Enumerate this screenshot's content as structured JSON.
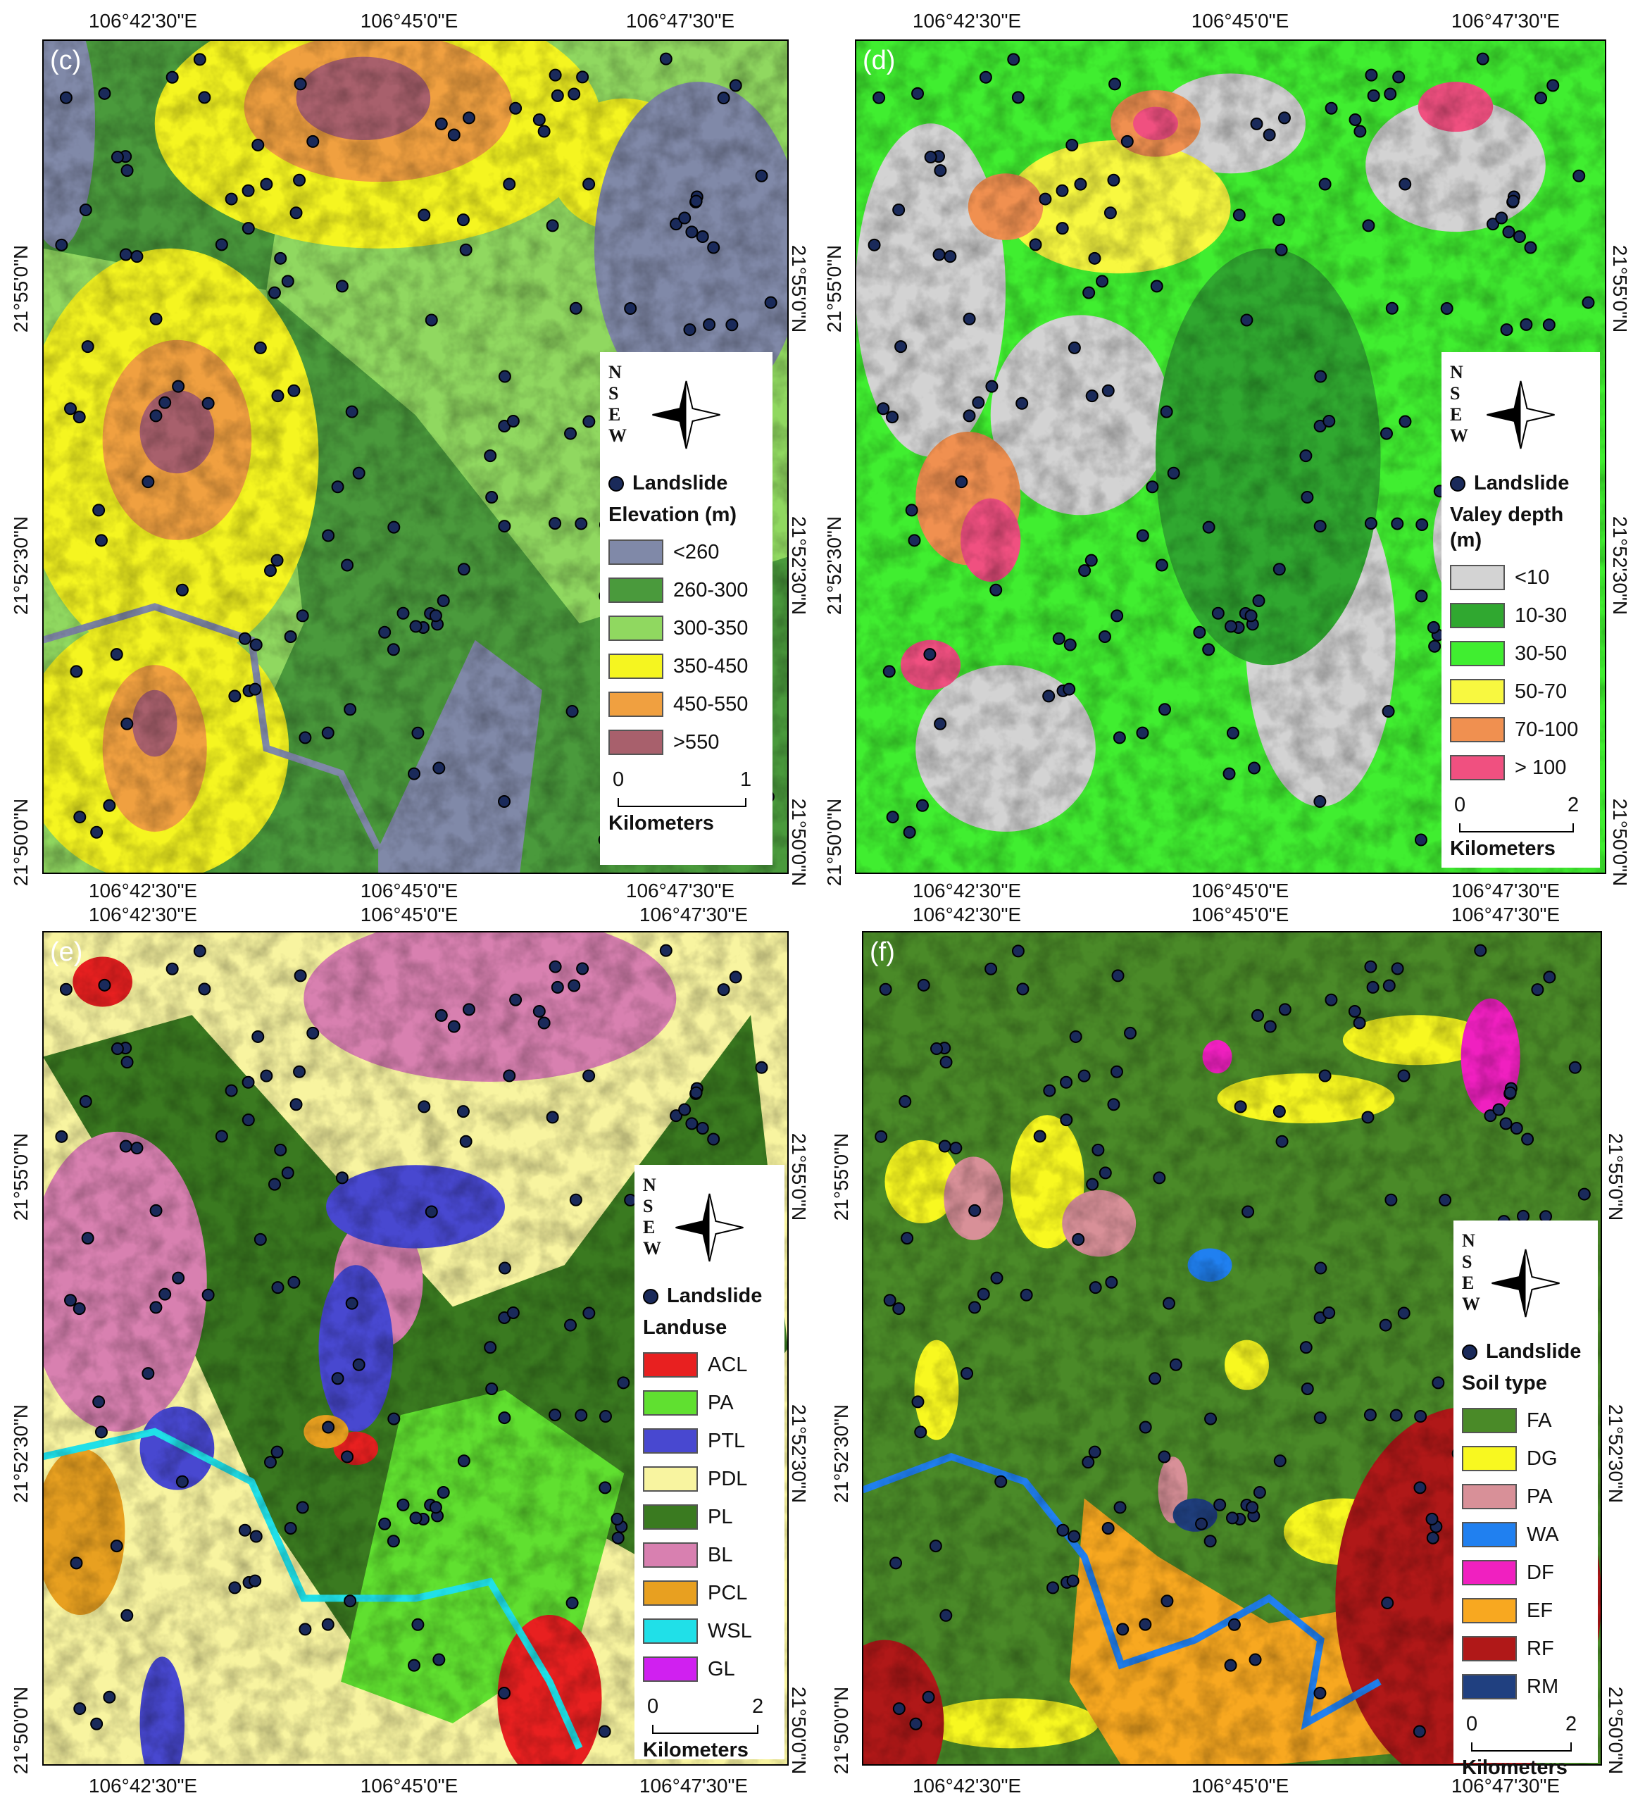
{
  "panels": [
    {
      "label": "(c)",
      "top_ticks": [
        "106°42'30\"E",
        "106°45'0\"E",
        "106°47'30\"E"
      ],
      "bottom_ticks": [
        "106°42'30\"E",
        "106°45'0\"E",
        "106°47'30\"E"
      ],
      "left_ticks": [
        "21°55'0\"N",
        "21°52'30\"N",
        "21°50'0\"N"
      ],
      "right_ticks": [
        "21°55'0\"N",
        "21°52'30\"N",
        "21°50'0\"N"
      ],
      "legend": {
        "north": "N",
        "south": "S",
        "east": "E",
        "west": "W",
        "landslide": "Landslide",
        "title": "Elevation (m)",
        "items": [
          {
            "label": "<260",
            "color": "#8089a8"
          },
          {
            "label": "260-300",
            "color": "#4a9a3c"
          },
          {
            "label": "300-350",
            "color": "#90d860"
          },
          {
            "label": "350-450",
            "color": "#f5f520"
          },
          {
            "label": "450-550",
            "color": "#f0a040"
          },
          {
            "label": ">550",
            "color": "#a8606c"
          }
        ],
        "scale_ticks": [
          "0",
          "1"
        ],
        "scale_unit": "Kilometers"
      }
    },
    {
      "label": "(d)",
      "top_ticks": [
        "106°42'30\"E",
        "106°45'0\"E",
        "106°47'30\"E"
      ],
      "bottom_ticks": [
        "106°42'30\"E",
        "106°45'0\"E",
        "106°47'30\"E"
      ],
      "left_ticks": [
        "21°55'0\"N",
        "21°52'30\"N",
        "21°50'0\"N"
      ],
      "right_ticks": [
        "21°55'0\"N",
        "21°52'30\"N",
        "21°50'0\"N"
      ],
      "legend": {
        "north": "N",
        "south": "S",
        "east": "E",
        "west": "W",
        "landslide": "Landslide",
        "title": "Valey depth (m)",
        "items": [
          {
            "label": "<10",
            "color": "#d3d3d3"
          },
          {
            "label": "10-30",
            "color": "#30a830"
          },
          {
            "label": "30-50",
            "color": "#40ee30"
          },
          {
            "label": "50-70",
            "color": "#f8f840"
          },
          {
            "label": "70-100",
            "color": "#f09050"
          },
          {
            "label": "> 100",
            "color": "#f05080"
          }
        ],
        "scale_ticks": [
          "0",
          "2"
        ],
        "scale_unit": "Kilometers"
      }
    },
    {
      "label": "(e)",
      "top_ticks": [
        "106°42'30\"E",
        "106°45'0\"E",
        "106°47'30\"E"
      ],
      "bottom_ticks": [
        "106°42'30\"E",
        "106°45'0\"E",
        "106°47'30\"E"
      ],
      "left_ticks": [
        "21°55'0\"N",
        "21°52'30\"N",
        "21°50'0\"N"
      ],
      "right_ticks": [
        "21°55'0\"N",
        "21°52'30\"N",
        "21°50'0\"N"
      ],
      "legend": {
        "north": "N",
        "south": "S",
        "east": "E",
        "west": "W",
        "landslide": "Landslide",
        "title": "Landuse",
        "items": [
          {
            "label": "ACL",
            "color": "#e82020"
          },
          {
            "label": "PA",
            "color": "#60e030"
          },
          {
            "label": "PTL",
            "color": "#4848d0"
          },
          {
            "label": "PDL",
            "color": "#f8f4a0"
          },
          {
            "label": "PL",
            "color": "#3a7a20"
          },
          {
            "label": "BL",
            "color": "#d880b0"
          },
          {
            "label": "PCL",
            "color": "#e8a020"
          },
          {
            "label": "WSL",
            "color": "#20e0e8"
          },
          {
            "label": "GL",
            "color": "#d020f0"
          }
        ],
        "scale_ticks": [
          "0",
          "2"
        ],
        "scale_unit": "Kilometers"
      }
    },
    {
      "label": "(f)",
      "top_ticks": [
        "106°42'30\"E",
        "106°45'0\"E",
        "106°47'30\"E"
      ],
      "bottom_ticks": [
        "106°42'30\"E",
        "106°45'0\"E",
        "106°47'30\"E"
      ],
      "left_ticks": [
        "21°55'0\"N",
        "21°52'30\"N",
        "21°50'0\"N"
      ],
      "right_ticks": [
        "21°55'0\"N",
        "21°52'30\"N",
        "21°50'0\"N"
      ],
      "legend": {
        "north": "N",
        "south": "S",
        "east": "E",
        "west": "W",
        "landslide": "Landslide",
        "title": "Soil type",
        "items": [
          {
            "label": "FA",
            "color": "#4a8a28"
          },
          {
            "label": "DG",
            "color": "#f8f820"
          },
          {
            "label": "PA",
            "color": "#d89098"
          },
          {
            "label": "WA",
            "color": "#2080f0"
          },
          {
            "label": "DF",
            "color": "#f020c0"
          },
          {
            "label": "EF",
            "color": "#f8a820"
          },
          {
            "label": "RF",
            "color": "#b01818"
          },
          {
            "label": "RM",
            "color": "#204080"
          }
        ],
        "scale_ticks": [
          "0",
          "2"
        ],
        "scale_unit": "Kilometers"
      }
    }
  ]
}
